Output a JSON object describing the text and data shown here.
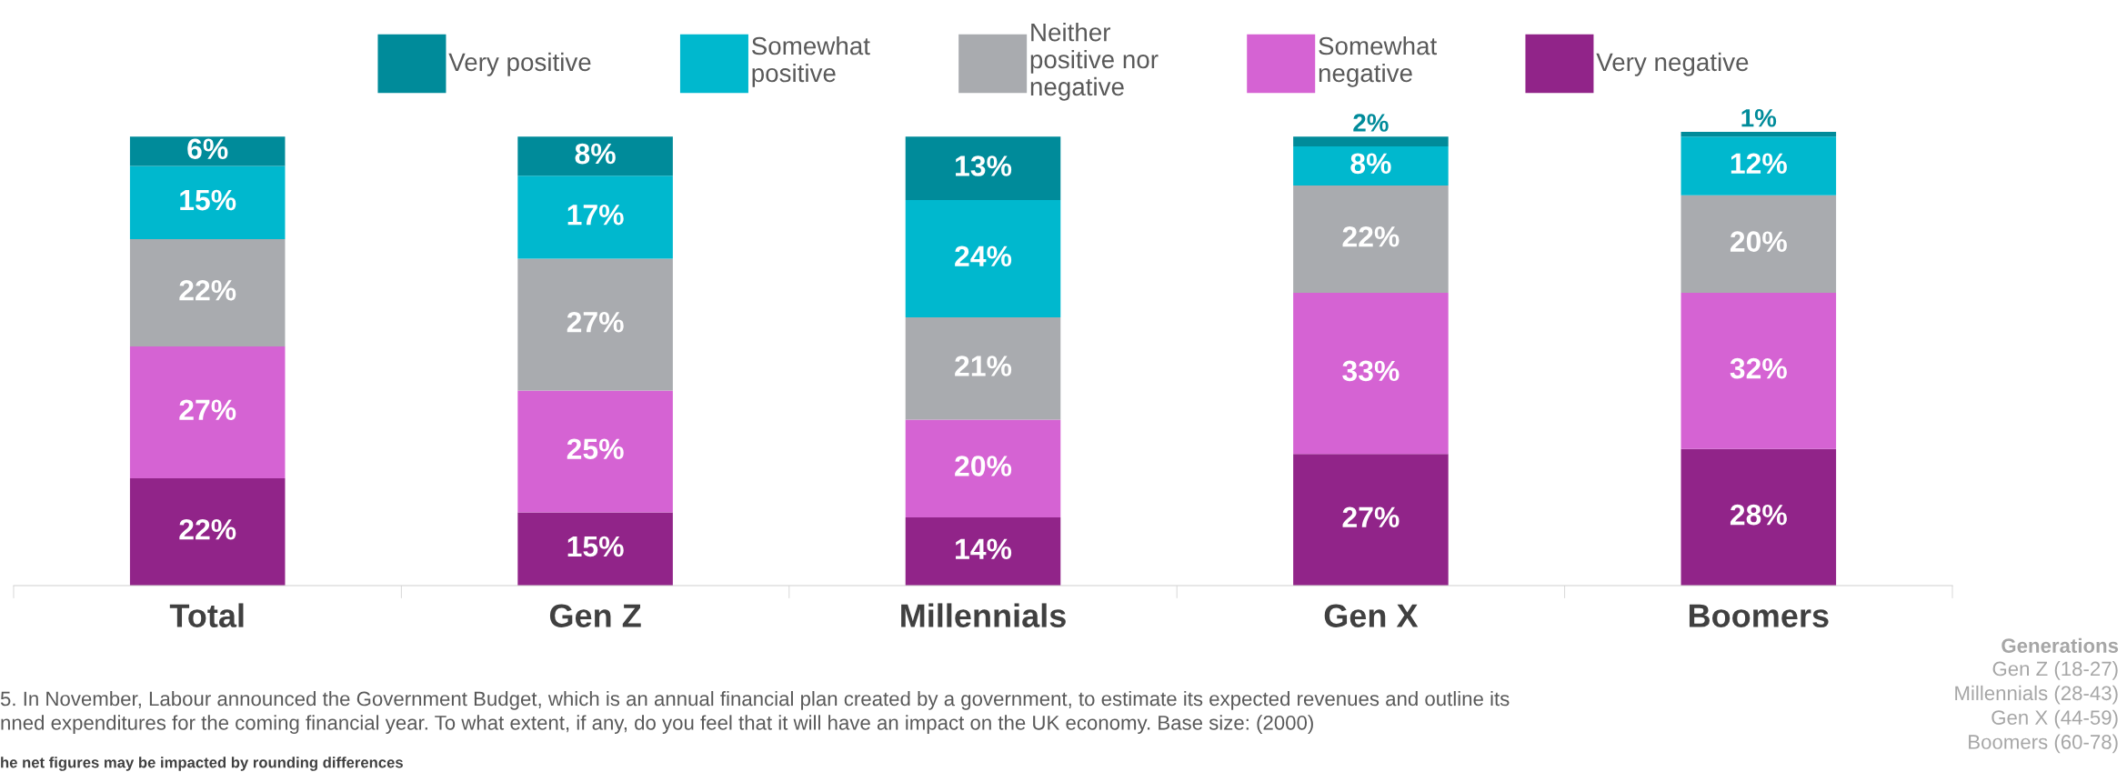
{
  "chart_data": {
    "type": "bar",
    "stacked": true,
    "legend": "top",
    "grid": false,
    "categories": [
      "Total",
      "Gen Z",
      "Millennials",
      "Gen X",
      "Boomers"
    ],
    "series": [
      {
        "name": "Very negative",
        "color": "#912489",
        "values": [
          22,
          15,
          14,
          27,
          28
        ],
        "value_labels": [
          "22%",
          "15%",
          "14%",
          "27%",
          "28%"
        ]
      },
      {
        "name": "Somewhat\nnegative",
        "color": "#d563d3",
        "values": [
          27,
          25,
          20,
          33,
          32
        ],
        "value_labels": [
          "27%",
          "25%",
          "20%",
          "33%",
          "32%"
        ]
      },
      {
        "name": "Neither\npositive nor\nnegative",
        "color": "#a9abaf",
        "values": [
          22,
          27,
          21,
          22,
          20
        ],
        "value_labels": [
          "22%",
          "27%",
          "21%",
          "22%",
          "20%"
        ]
      },
      {
        "name": "Somewhat\npositive",
        "color": "#00b8ce",
        "values": [
          15,
          17,
          24,
          8,
          12
        ],
        "value_labels": [
          "15%",
          "17%",
          "24%",
          "8%",
          "12%"
        ]
      },
      {
        "name": "Very positive",
        "color": "#008b9a",
        "values": [
          6,
          8,
          13,
          2,
          1
        ],
        "value_labels": [
          "6%",
          "8%",
          "13%",
          "2%",
          "1%"
        ]
      }
    ],
    "annotations": [
      "5. In November, Labour announced the Government Budget, which is an annual financial plan created by a government, to estimate its expected revenues and outline its\nnned expenditures for the coming financial year. To what extent, if any, do you feel that it will have an impact on the UK economy. Base size: (2000)",
      "he net figures may be impacted by rounding differences",
      "Generations",
      "Gen Z (18-27)\nMillennials (28-43)\nGen X (44-59)\nBoomers (60-78)"
    ]
  }
}
